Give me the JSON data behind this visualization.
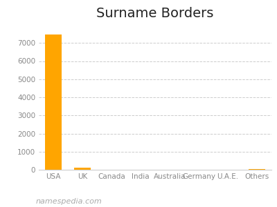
{
  "title": "Surname Borders",
  "categories": [
    "USA",
    "UK",
    "Canada",
    "India",
    "Australia",
    "Germany",
    "U.A.E.",
    "Others"
  ],
  "values": [
    7450,
    110,
    15,
    8,
    5,
    4,
    3,
    20
  ],
  "bar_color": "#FFA500",
  "background_color": "#ffffff",
  "ylim": [
    0,
    8000
  ],
  "yticks": [
    0,
    1000,
    2000,
    3000,
    4000,
    5000,
    6000,
    7000
  ],
  "grid_color": "#cccccc",
  "title_fontsize": 14,
  "tick_fontsize": 7.5,
  "watermark": "namespedia.com",
  "watermark_fontsize": 8
}
